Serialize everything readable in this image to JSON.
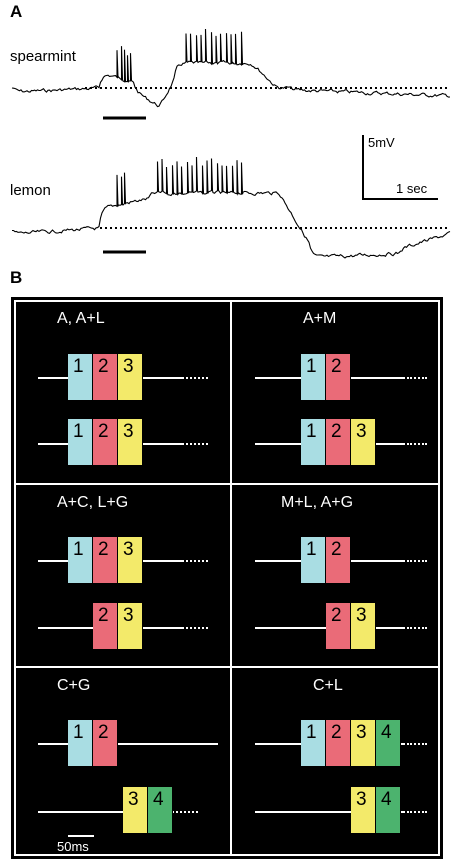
{
  "panel_a": {
    "letter": "A",
    "traces": [
      {
        "label": "spearmint"
      },
      {
        "label": "lemon"
      }
    ],
    "scale": {
      "voltage": "5mV",
      "time": "1 sec"
    }
  },
  "panel_b": {
    "letter": "B",
    "scale_label": "50ms",
    "cells": [
      {
        "title": "A, A+L"
      },
      {
        "title": "A+M"
      },
      {
        "title": "A+C, L+G"
      },
      {
        "title": "M+L, A+G"
      },
      {
        "title": "C+G"
      },
      {
        "title": "C+L"
      }
    ],
    "box_labels": {
      "one": "1",
      "two": "2",
      "three": "3",
      "four": "4"
    }
  },
  "colors": {
    "box_1": "#a9dde3",
    "box_2": "#ea6b78",
    "box_3": "#f3ea6a",
    "box_4": "#4cb36e",
    "panel_b_background": "#000000"
  }
}
